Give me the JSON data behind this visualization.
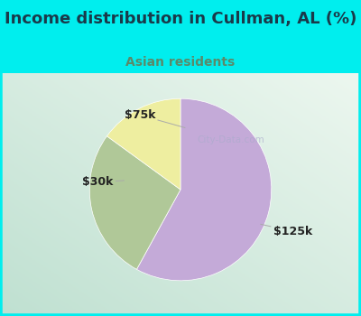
{
  "title": "Income distribution in Cullman, AL (%)",
  "subtitle": "Asian residents",
  "title_color": "#1a3a4a",
  "subtitle_color": "#5a8a6a",
  "top_bg_color": "#00EEEE",
  "chart_bg_left": "#c8e8d8",
  "chart_bg_right": "#e8f8f0",
  "slices": [
    {
      "label": "$125k",
      "value": 58,
      "color": "#c4aad8"
    },
    {
      "label": "$30k",
      "value": 27,
      "color": "#b0c898"
    },
    {
      "label": "$75k",
      "value": 15,
      "color": "#eeeea0"
    }
  ],
  "startangle": 90,
  "label_font_size": 9,
  "title_font_size": 13,
  "subtitle_font_size": 10,
  "watermark": "City-Data.com"
}
